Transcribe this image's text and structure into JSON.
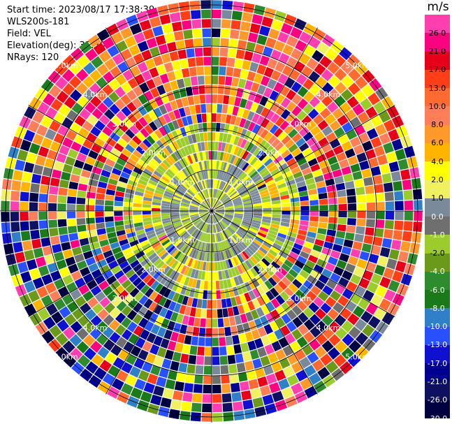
{
  "header": {
    "start_time": "Start time: 2023/08/17 17:38:39",
    "instrument": "WLS200s-181",
    "field": "Field: VEL",
    "elevation": "Elevation(deg): 35.30",
    "nrays": "NRays: 120"
  },
  "colorbar": {
    "unit": "m/s",
    "ticks": [
      "26.0",
      "21.0",
      "17.0",
      "13.0",
      "10.0",
      "8.0",
      "6.0",
      "4.0",
      "2.0",
      "1.0",
      "0.0",
      "-1.0",
      "-2.0",
      "-4.0",
      "-6.0",
      "-8.0",
      "-10.0",
      "-13.0",
      "-17.0",
      "-21.0",
      "-26.0",
      "-30.0"
    ],
    "colors": [
      "#ff3fb0",
      "#ff0080",
      "#e8001a",
      "#ff3d17",
      "#ff6a30",
      "#ff7e5a",
      "#ff9a2a",
      "#ffb400",
      "#ffff00",
      "#f0f060",
      "#7a8a9a",
      "#6f6f6f",
      "#9ccc2c",
      "#6b9a1b",
      "#2e8b2e",
      "#1a7a1a",
      "#2f80c8",
      "#2850ff",
      "#1010d0",
      "#000090",
      "#101060",
      "#000040"
    ]
  },
  "range_rings": {
    "labels": [
      "1.0km",
      "2.0km",
      "3.0km",
      "4.0km",
      "5.0km"
    ]
  }
}
